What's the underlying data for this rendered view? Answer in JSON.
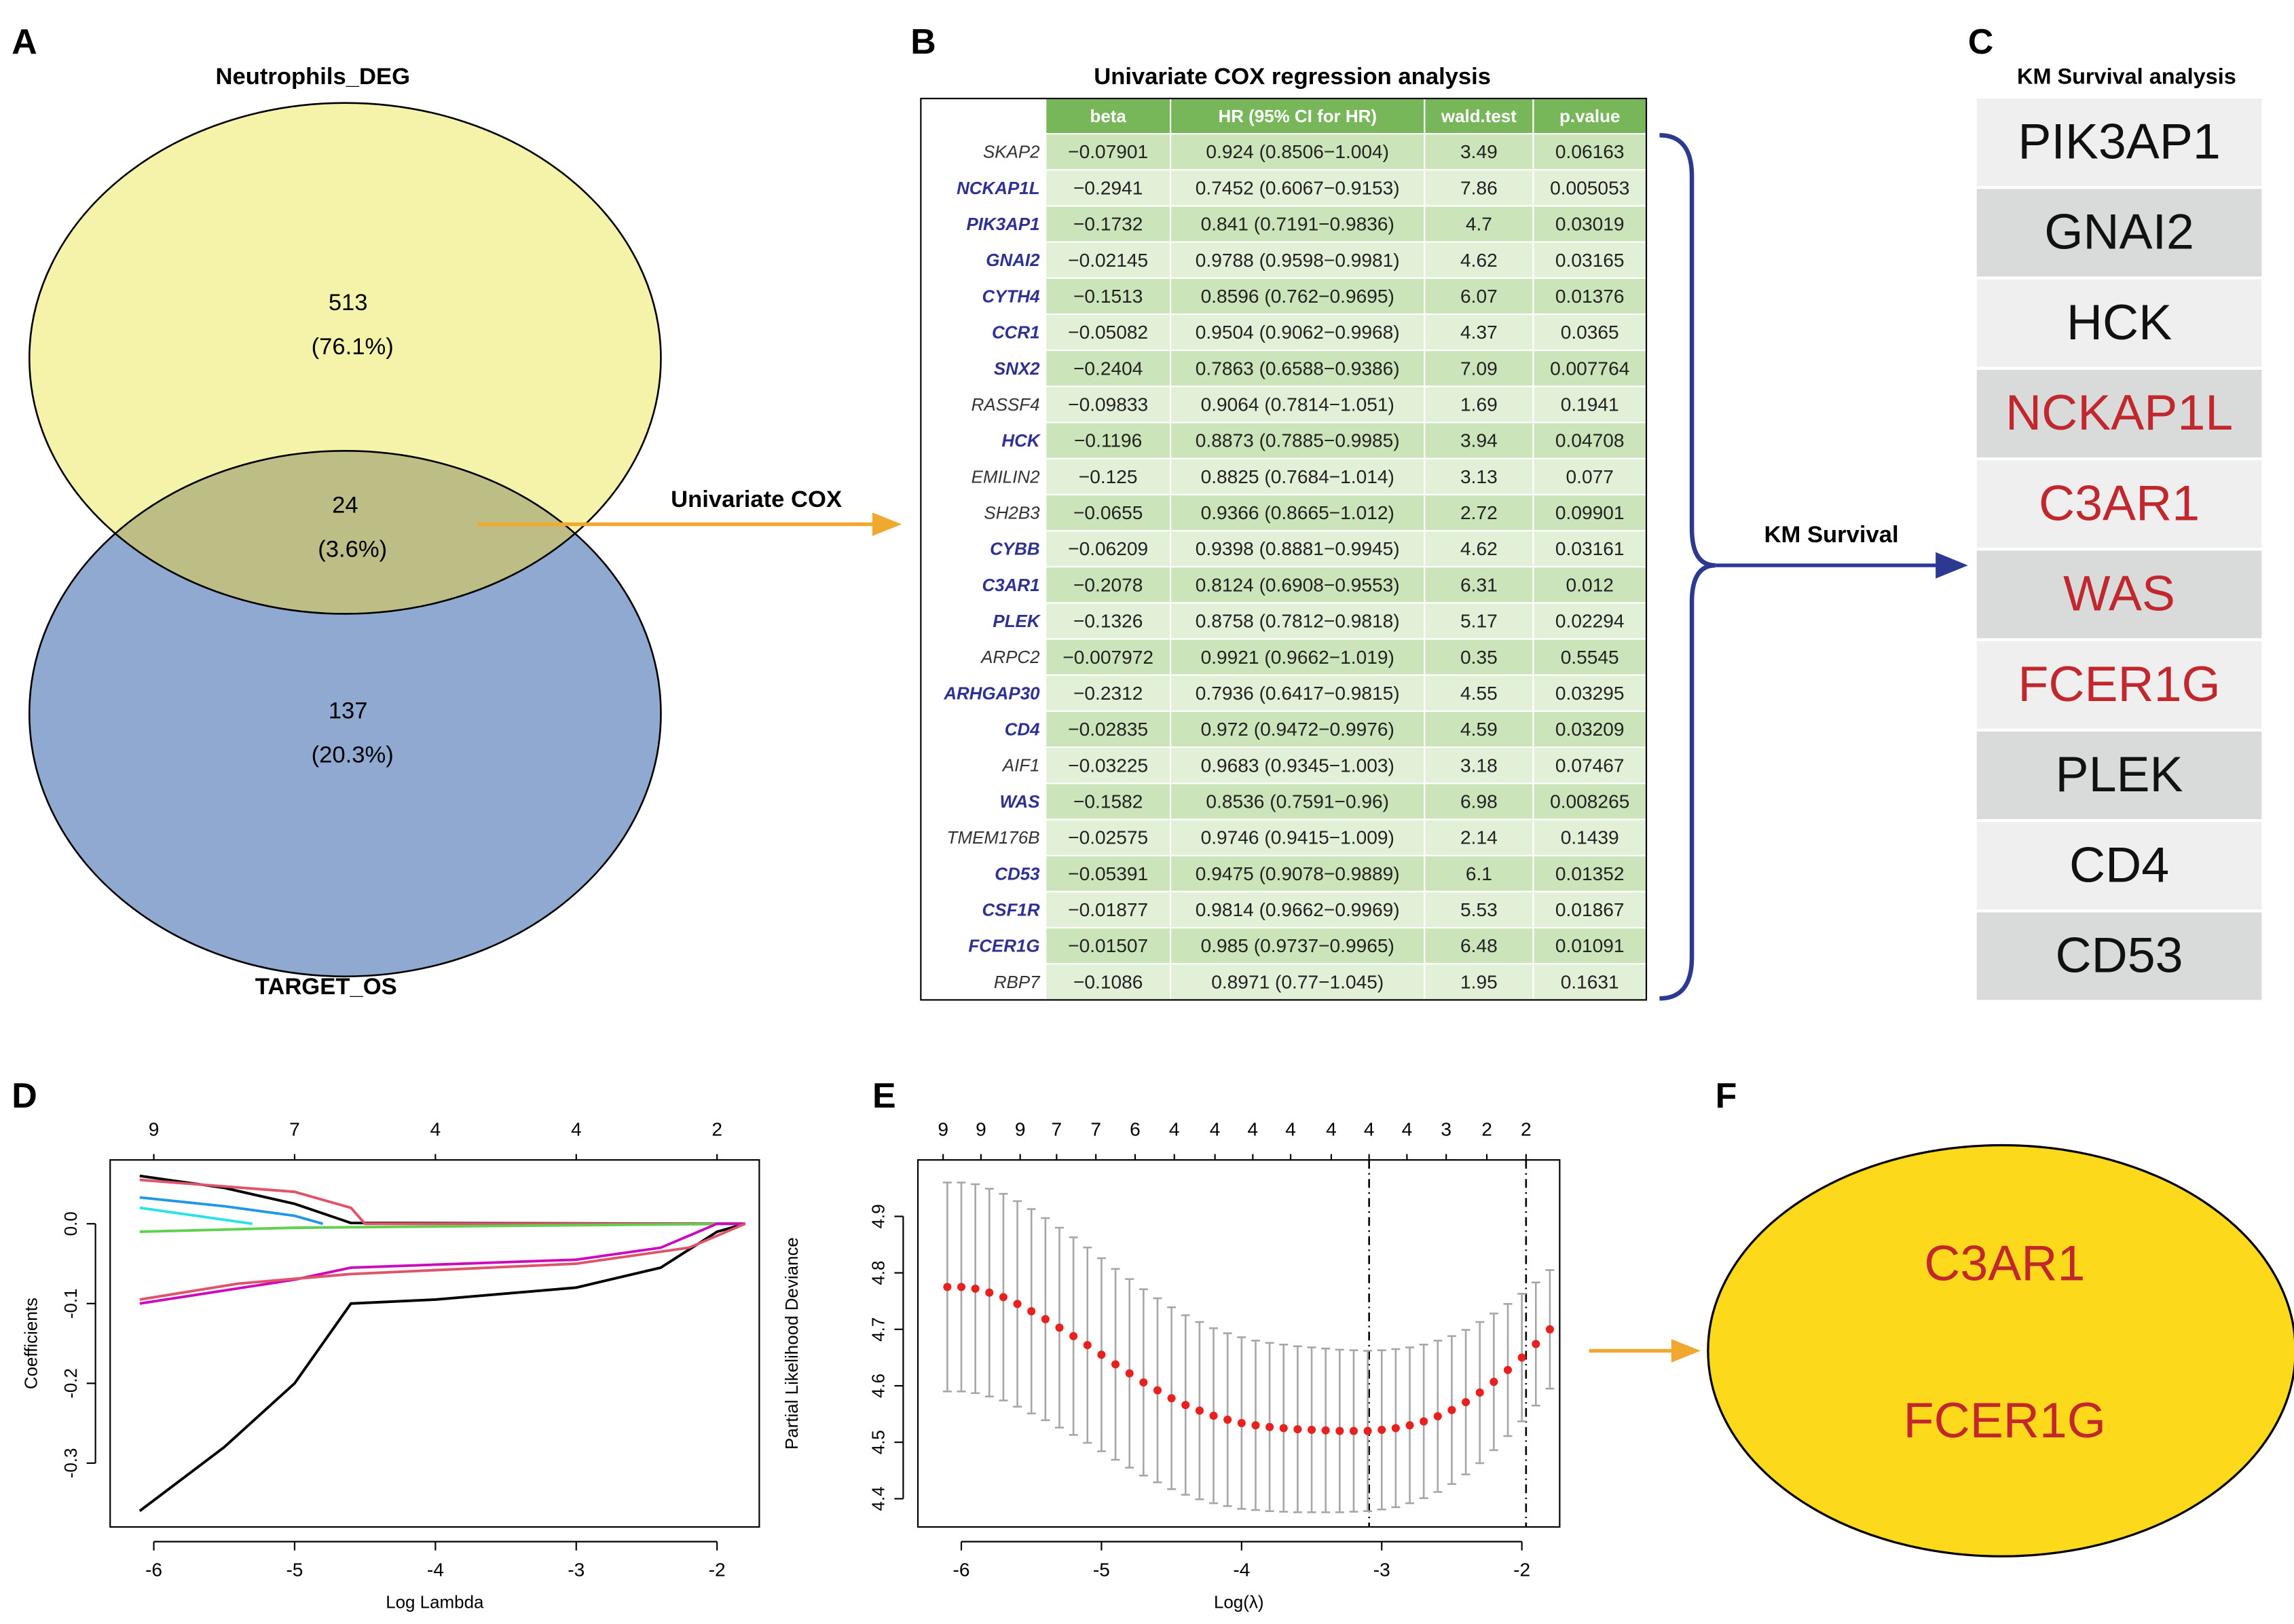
{
  "panel_a": {
    "label": "A",
    "set1": "Neutrophils_DEG",
    "set2": "TARGET_OS",
    "only1": {
      "count": 513,
      "percent": "(76.1%)"
    },
    "both": {
      "count": 24,
      "percent": "(3.6%)"
    },
    "only2": {
      "count": 137,
      "percent": "(20.3%)"
    },
    "arrow_label": "Univariate COX"
  },
  "panel_b": {
    "label": "B",
    "title": "Univariate COX regression analysis",
    "headers": [
      "beta",
      "HR (95% CI for HR)",
      "wald.test",
      "p.value"
    ],
    "highlight_color": "#2e3192",
    "arrow_label": "KM Survival",
    "rows": [
      {
        "gene": "SKAP2",
        "beta": "−0.07901",
        "hr": "0.924 (0.8506−1.004)",
        "wald": 3.49,
        "p": 0.06163,
        "highlight": false
      },
      {
        "gene": "NCKAP1L",
        "beta": "−0.2941",
        "hr": "0.7452 (0.6067−0.9153)",
        "wald": 7.86,
        "p": 0.005053,
        "highlight": true
      },
      {
        "gene": "PIK3AP1",
        "beta": "−0.1732",
        "hr": "0.841 (0.7191−0.9836)",
        "wald": 4.7,
        "p": 0.03019,
        "highlight": true
      },
      {
        "gene": "GNAI2",
        "beta": "−0.02145",
        "hr": "0.9788 (0.9598−0.9981)",
        "wald": 4.62,
        "p": 0.03165,
        "highlight": true
      },
      {
        "gene": "CYTH4",
        "beta": "−0.1513",
        "hr": "0.8596 (0.762−0.9695)",
        "wald": 6.07,
        "p": 0.01376,
        "highlight": true
      },
      {
        "gene": "CCR1",
        "beta": "−0.05082",
        "hr": "0.9504 (0.9062−0.9968)",
        "wald": 4.37,
        "p": 0.0365,
        "highlight": true
      },
      {
        "gene": "SNX2",
        "beta": "−0.2404",
        "hr": "0.7863 (0.6588−0.9386)",
        "wald": 7.09,
        "p": 0.007764,
        "highlight": true
      },
      {
        "gene": "RASSF4",
        "beta": "−0.09833",
        "hr": "0.9064 (0.7814−1.051)",
        "wald": 1.69,
        "p": 0.1941,
        "highlight": false
      },
      {
        "gene": "HCK",
        "beta": "−0.1196",
        "hr": "0.8873 (0.7885−0.9985)",
        "wald": 3.94,
        "p": 0.04708,
        "highlight": true
      },
      {
        "gene": "EMILIN2",
        "beta": "−0.125",
        "hr": "0.8825 (0.7684−1.014)",
        "wald": 3.13,
        "p": 0.077,
        "highlight": false
      },
      {
        "gene": "SH2B3",
        "beta": "−0.0655",
        "hr": "0.9366 (0.8665−1.012)",
        "wald": 2.72,
        "p": 0.09901,
        "highlight": false
      },
      {
        "gene": "CYBB",
        "beta": "−0.06209",
        "hr": "0.9398 (0.8881−0.9945)",
        "wald": 4.62,
        "p": 0.03161,
        "highlight": true
      },
      {
        "gene": "C3AR1",
        "beta": "−0.2078",
        "hr": "0.8124 (0.6908−0.9553)",
        "wald": 6.31,
        "p": 0.012,
        "highlight": true
      },
      {
        "gene": "PLEK",
        "beta": "−0.1326",
        "hr": "0.8758 (0.7812−0.9818)",
        "wald": 5.17,
        "p": 0.02294,
        "highlight": true
      },
      {
        "gene": "ARPC2",
        "beta": "−0.007972",
        "hr": "0.9921 (0.9662−1.019)",
        "wald": 0.35,
        "p": 0.5545,
        "highlight": false
      },
      {
        "gene": "ARHGAP30",
        "beta": "−0.2312",
        "hr": "0.7936 (0.6417−0.9815)",
        "wald": 4.55,
        "p": 0.03295,
        "highlight": true
      },
      {
        "gene": "CD4",
        "beta": "−0.02835",
        "hr": "0.972 (0.9472−0.9976)",
        "wald": 4.59,
        "p": 0.03209,
        "highlight": true
      },
      {
        "gene": "AIF1",
        "beta": "−0.03225",
        "hr": "0.9683 (0.9345−1.003)",
        "wald": 3.18,
        "p": 0.07467,
        "highlight": false
      },
      {
        "gene": "WAS",
        "beta": "−0.1582",
        "hr": "0.8536 (0.7591−0.96)",
        "wald": 6.98,
        "p": 0.008265,
        "highlight": true
      },
      {
        "gene": "TMEM176B",
        "beta": "−0.02575",
        "hr": "0.9746 (0.9415−1.009)",
        "wald": 2.14,
        "p": 0.1439,
        "highlight": false
      },
      {
        "gene": "CD53",
        "beta": "−0.05391",
        "hr": "0.9475 (0.9078−0.9889)",
        "wald": 6.1,
        "p": 0.01352,
        "highlight": true
      },
      {
        "gene": "CSF1R",
        "beta": "−0.01877",
        "hr": "0.9814 (0.9662−0.9969)",
        "wald": 5.53,
        "p": 0.01867,
        "highlight": true
      },
      {
        "gene": "FCER1G",
        "beta": "−0.01507",
        "hr": "0.985 (0.9737−0.9965)",
        "wald": 6.48,
        "p": 0.01091,
        "highlight": true
      },
      {
        "gene": "RBP7",
        "beta": "−0.1086",
        "hr": "0.8971 (0.77−1.045)",
        "wald": 1.95,
        "p": 0.1631,
        "highlight": false
      }
    ]
  },
  "panel_c": {
    "label": "C",
    "title": "KM Survival analysis",
    "items": [
      {
        "text": "PIK3AP1",
        "color": "#111111"
      },
      {
        "text": "GNAI2",
        "color": "#111111"
      },
      {
        "text": "HCK",
        "color": "#111111"
      },
      {
        "text": "NCKAP1L",
        "color": "#c1272d"
      },
      {
        "text": "C3AR1",
        "color": "#c1272d"
      },
      {
        "text": "WAS",
        "color": "#c1272d"
      },
      {
        "text": "FCER1G",
        "color": "#c1272d"
      },
      {
        "text": "PLEK",
        "color": "#111111"
      },
      {
        "text": "CD4",
        "color": "#111111"
      },
      {
        "text": "CD53",
        "color": "#111111"
      }
    ]
  },
  "panel_f": {
    "label": "F",
    "items": [
      "C3AR1",
      "FCER1G"
    ],
    "color": "#c1272d",
    "fill": "#fcd91a"
  },
  "chart_data": [
    {
      "type": "line",
      "label": "D",
      "x_label": "Log Lambda",
      "y_label": "Coefficients",
      "xlim": [
        -6.31,
        -1.7
      ],
      "ylim": [
        -0.38,
        0.08
      ],
      "xticks": [
        -6,
        -5,
        -4,
        -3,
        -2
      ],
      "yticks": [
        -0.3,
        -0.2,
        -0.1,
        {
          "value": 0,
          "label": "0.0"
        }
      ],
      "x2ticks": [
        {
          "value": -6,
          "label": "9"
        },
        {
          "value": -5,
          "label": "7"
        },
        {
          "value": -4,
          "label": "4"
        },
        {
          "value": -3,
          "label": "4"
        },
        {
          "value": -2,
          "label": "2"
        }
      ],
      "series": [
        {
          "color": "#000000",
          "x": [
            -6.1,
            -5.5,
            -5,
            -4.6,
            -4,
            -3,
            -2.4,
            -2,
            -1.8
          ],
          "values": [
            -0.36,
            -0.28,
            -0.2,
            -0.1,
            -0.095,
            -0.08,
            -0.055,
            -0.01,
            0
          ]
        },
        {
          "color": "#000000",
          "x": [
            -6.1,
            -5.5,
            -5,
            -4.6,
            -1.8
          ],
          "values": [
            0.06,
            0.045,
            0.025,
            0.001,
            0
          ]
        },
        {
          "color": "#df536b",
          "x": [
            -6.1,
            -5,
            -4.6,
            -4.5,
            -1.8
          ],
          "values": [
            0.055,
            0.04,
            0.02,
            0,
            0
          ]
        },
        {
          "color": "#2297e6",
          "x": [
            -6.1,
            -5.5,
            -5,
            -4.8
          ],
          "values": [
            0.033,
            0.022,
            0.01,
            0
          ]
        },
        {
          "color": "#28e2e5",
          "x": [
            -6.1,
            -5.7,
            -5.3
          ],
          "values": [
            0.02,
            0.01,
            0
          ]
        },
        {
          "color": "#61d04f",
          "x": [
            -6.1,
            -5,
            -1.8
          ],
          "values": [
            -0.01,
            -0.005,
            0
          ]
        },
        {
          "color": "#cd0bbc",
          "x": [
            -6.1,
            -5,
            -4.6,
            -3,
            -2.4,
            -2,
            -1.8
          ],
          "values": [
            -0.1,
            -0.07,
            -0.055,
            -0.045,
            -0.03,
            0,
            0
          ]
        },
        {
          "color": "#df536b",
          "x": [
            -6.1,
            -5.4,
            -4.6,
            -3,
            -2.2,
            -1.8
          ],
          "values": [
            -0.095,
            -0.075,
            -0.063,
            -0.05,
            -0.03,
            0
          ]
        }
      ]
    },
    {
      "type": "scatter",
      "label": "E",
      "x_label": "Log(λ)",
      "y_label": "Partial Likelihood Deviance",
      "xlim": [
        -6.31,
        -1.73
      ],
      "ylim": [
        4.35,
        5.0
      ],
      "xticks": [
        -6,
        -5,
        -4,
        -3,
        -2
      ],
      "yticks": [
        4.4,
        4.5,
        4.6,
        4.7,
        4.8,
        4.9
      ],
      "x2ticks": [
        {
          "value": -6.13,
          "label": "9"
        },
        {
          "value": -5.86,
          "label": "9"
        },
        {
          "value": -5.58,
          "label": "9"
        },
        {
          "value": -5.32,
          "label": "7"
        },
        {
          "value": -5.04,
          "label": "7"
        },
        {
          "value": -4.76,
          "label": "6"
        },
        {
          "value": -4.48,
          "label": "4"
        },
        {
          "value": -4.19,
          "label": "4"
        },
        {
          "value": -3.92,
          "label": "4"
        },
        {
          "value": -3.65,
          "label": "4"
        },
        {
          "value": -3.36,
          "label": "4"
        },
        {
          "value": -3.09,
          "label": "4"
        },
        {
          "value": -2.82,
          "label": "4"
        },
        {
          "value": -2.54,
          "label": "3"
        },
        {
          "value": -2.25,
          "label": "2"
        },
        {
          "value": -1.97,
          "label": "2"
        }
      ],
      "vlines": [
        -3.09,
        -1.97
      ],
      "series": [
        {
          "color": "#e8211e",
          "error_color": "#a6a6a6",
          "x": [
            -6.1,
            -6,
            -5.9,
            -5.8,
            -5.7,
            -5.6,
            -5.5,
            -5.4,
            -5.3,
            -5.2,
            -5.1,
            -5,
            -4.9,
            -4.8,
            -4.7,
            -4.6,
            -4.5,
            -4.4,
            -4.3,
            -4.2,
            -4.1,
            -4,
            -3.9,
            -3.8,
            -3.7,
            -3.6,
            -3.5,
            -3.4,
            -3.3,
            -3.2,
            -3.1,
            -3,
            -2.9,
            -2.8,
            -2.7,
            -2.6,
            -2.5,
            -2.4,
            -2.3,
            -2.2,
            -2.1,
            -2,
            -1.9,
            -1.8
          ],
          "values": [
            4.775,
            4.775,
            4.772,
            4.765,
            4.757,
            4.745,
            4.732,
            4.718,
            4.703,
            4.688,
            4.672,
            4.655,
            4.638,
            4.622,
            4.606,
            4.592,
            4.578,
            4.566,
            4.556,
            4.547,
            4.54,
            4.534,
            4.53,
            4.527,
            4.525,
            4.523,
            4.522,
            4.521,
            4.52,
            4.52,
            4.52,
            4.522,
            4.525,
            4.53,
            4.537,
            4.546,
            4.557,
            4.571,
            4.588,
            4.607,
            4.628,
            4.65,
            4.674,
            4.7
          ],
          "errors": [
            0.185,
            0.185,
            0.185,
            0.184,
            0.183,
            0.182,
            0.181,
            0.179,
            0.177,
            0.175,
            0.173,
            0.171,
            0.169,
            0.167,
            0.165,
            0.163,
            0.161,
            0.159,
            0.157,
            0.155,
            0.153,
            0.152,
            0.15,
            0.149,
            0.148,
            0.147,
            0.146,
            0.145,
            0.144,
            0.143,
            0.142,
            0.141,
            0.14,
            0.138,
            0.136,
            0.134,
            0.131,
            0.128,
            0.125,
            0.121,
            0.117,
            0.113,
            0.109,
            0.105
          ]
        }
      ]
    }
  ]
}
